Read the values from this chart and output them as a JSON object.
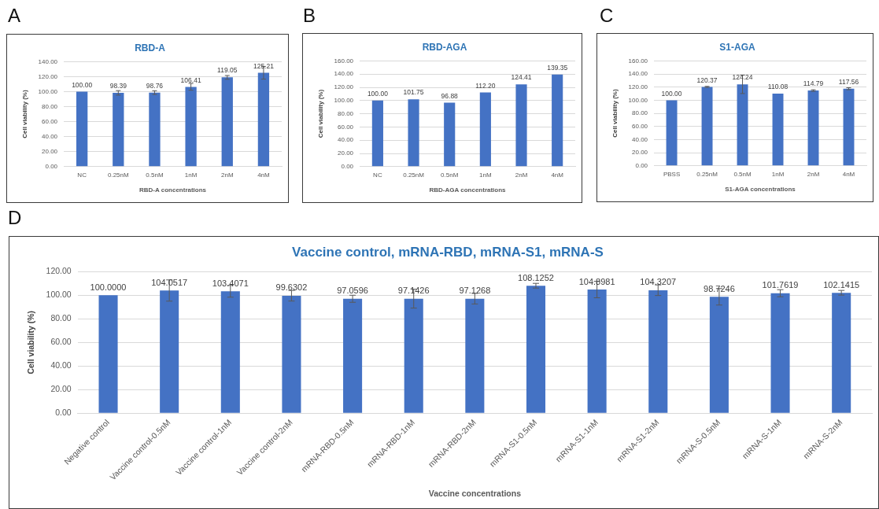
{
  "chart_data": [
    {
      "type": "bar",
      "title": "RBD-A",
      "xlabel": "RBD-A concentrations",
      "ylabel": "Cell viability (%)",
      "annotations": [
        "A"
      ],
      "categories": [
        "NC",
        "0.25nM",
        "0.5nM",
        "1nM",
        "2nM",
        "4nM"
      ],
      "values": [
        100,
        98.39,
        98.76,
        106.41,
        119.05,
        125.21
      ],
      "value_labels": [
        "100.00",
        "98.39",
        "98.76",
        "106.41",
        "119.05",
        "125.21"
      ],
      "errors": [
        null,
        3,
        2.5,
        4.5,
        2.5,
        8.5
      ],
      "color": "#4472c4",
      "ylim": [
        0,
        140
      ],
      "yticks": [
        {
          "value": 0,
          "label": "0.00"
        },
        {
          "value": 20,
          "label": "20.00"
        },
        {
          "value": 40,
          "label": "40.00"
        },
        {
          "value": 60,
          "label": "60.00"
        },
        {
          "value": 80,
          "label": "80.00"
        },
        {
          "value": 100,
          "label": "100.00"
        },
        {
          "value": 120,
          "label": "120.00"
        },
        {
          "value": 140,
          "label": "140.00"
        }
      ],
      "grid": "y"
    },
    {
      "type": "bar",
      "title": "RBD-AGA",
      "xlabel": "RBD-AGA concentrations",
      "ylabel": "Cell viability (%)",
      "annotations": [
        "B"
      ],
      "categories": [
        "NC",
        "0.25nM",
        "0.5nM",
        "1nM",
        "2nM",
        "4nM"
      ],
      "values": [
        100,
        101.75,
        96.88,
        112.2,
        124.41,
        139.35
      ],
      "value_labels": [
        "100.00",
        "101.75",
        "96.88",
        "112.20",
        "124.41",
        "139.35"
      ],
      "color": "#4472c4",
      "ylim": [
        0,
        160
      ],
      "yticks": [
        {
          "value": 0,
          "label": "0.00"
        },
        {
          "value": 20,
          "label": "20.00"
        },
        {
          "value": 40,
          "label": "40.00"
        },
        {
          "value": 60,
          "label": "60.00"
        },
        {
          "value": 80,
          "label": "80.00"
        },
        {
          "value": 100,
          "label": "100.00"
        },
        {
          "value": 120,
          "label": "120.00"
        },
        {
          "value": 140,
          "label": "140.00"
        },
        {
          "value": 160,
          "label": "160.00"
        }
      ],
      "grid": "y"
    },
    {
      "type": "bar",
      "title": "S1-AGA",
      "xlabel": "S1-AGA concentrations",
      "ylabel": "Cell viability (%)",
      "annotations": [
        "C"
      ],
      "categories": [
        "PBSS",
        "0.25nM",
        "0.5nM",
        "1nM",
        "2nM",
        "4nM"
      ],
      "values": [
        100,
        120.37,
        124.24,
        110.08,
        114.79,
        117.56
      ],
      "value_labels": [
        "100.00",
        "120.37",
        "124.24",
        "110.08",
        "114.79",
        "117.56"
      ],
      "errors": [
        null,
        0.8,
        14,
        null,
        1.2,
        1.5
      ],
      "color": "#4472c4",
      "ylim": [
        0,
        160
      ],
      "yticks": [
        {
          "value": 0,
          "label": "0.00"
        },
        {
          "value": 20,
          "label": "20.00"
        },
        {
          "value": 40,
          "label": "40.00"
        },
        {
          "value": 60,
          "label": "60.00"
        },
        {
          "value": 80,
          "label": "80.00"
        },
        {
          "value": 100,
          "label": "100.00"
        },
        {
          "value": 120,
          "label": "120.00"
        },
        {
          "value": 140,
          "label": "140.00"
        },
        {
          "value": 160,
          "label": "160.00"
        }
      ],
      "grid": "y"
    },
    {
      "type": "bar",
      "title": "Vaccine control, mRNA-RBD, mRNA-S1, mRNA-S",
      "xlabel": "Vaccine concentrations",
      "ylabel": "Cell viability (%)",
      "annotations": [
        "D"
      ],
      "categories": [
        "Negative control",
        "Vaccine control-0.5nM",
        "Vaccine control-1nM",
        "Vaccine control-2nM",
        "mRNA-RBD-0.5nM",
        "mRNA-RBD-1nM",
        "mRNA-RBD-2nM",
        "mRNA-S1-0.5nM",
        "mRNA-S1-1nM",
        "mRNA-S1-2nM",
        "mRNA-S-0.5nM",
        "mRNA-S-1nM",
        "mRNA-S-2nM"
      ],
      "values": [
        100,
        104.0517,
        103.4071,
        99.6302,
        97.0596,
        97.1426,
        97.1268,
        108.1252,
        104.8981,
        104.3207,
        98.7246,
        101.7619,
        102.1415
      ],
      "value_labels": [
        "100.0000",
        "104.0517",
        "103.4071",
        "99.6302",
        "97.0596",
        "97.1426",
        "97.1268",
        "108.1252",
        "104.8981",
        "104.3207",
        "98.7246",
        "101.7619",
        "102.1415"
      ],
      "errors": [
        null,
        9,
        5,
        4.5,
        3,
        8,
        4.5,
        2,
        7,
        4.5,
        7,
        3,
        2
      ],
      "color": "#4472c4",
      "ylim": [
        0,
        120
      ],
      "yticks": [
        {
          "value": 0,
          "label": "0.00"
        },
        {
          "value": 20,
          "label": "20.00"
        },
        {
          "value": 40,
          "label": "40.00"
        },
        {
          "value": 60,
          "label": "60.00"
        },
        {
          "value": 80,
          "label": "80.00"
        },
        {
          "value": 100,
          "label": "100.00"
        },
        {
          "value": 120,
          "label": "120.00"
        }
      ],
      "grid": "y"
    }
  ]
}
